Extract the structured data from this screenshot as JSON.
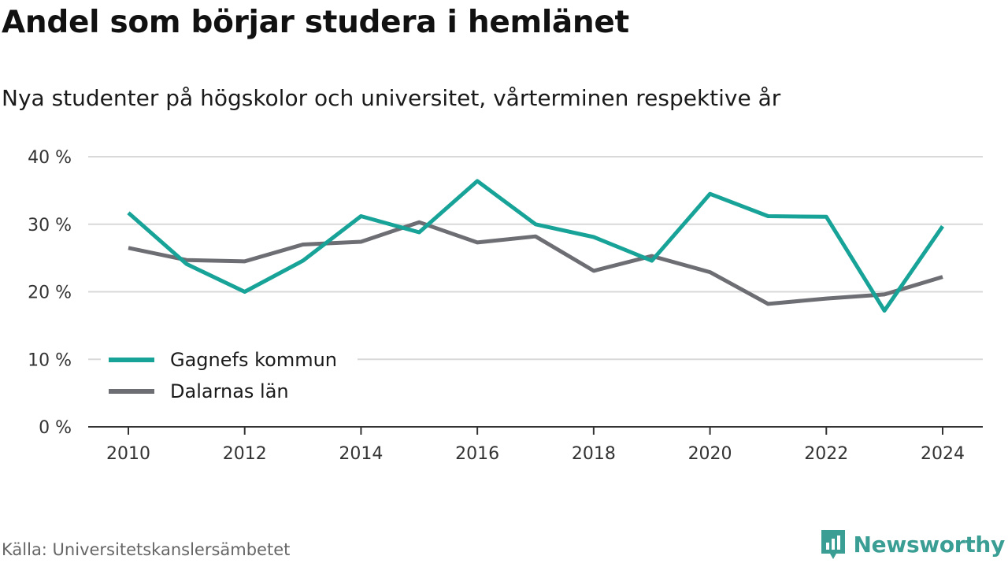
{
  "title": "Andel som börjar studera i hemlänet",
  "subtitle": "Nya studenter på högskolor och universitet, vårterminen respektive år",
  "source": "Källa: Universitetskanslersämbetet",
  "brand": {
    "name": "Newsworthy",
    "icon": "newsworthy-logo-icon",
    "color": "#3a9e94"
  },
  "chart_data": {
    "type": "line",
    "x": [
      2010,
      2011,
      2012,
      2013,
      2014,
      2015,
      2016,
      2017,
      2018,
      2019,
      2020,
      2021,
      2022,
      2023,
      2024
    ],
    "series": [
      {
        "name": "Gagnefs kommun",
        "color": "#17a398",
        "values": [
          31.7,
          24.1,
          20.0,
          24.6,
          31.2,
          28.8,
          36.4,
          30.0,
          28.1,
          24.6,
          34.5,
          31.2,
          31.1,
          17.2,
          29.7
        ]
      },
      {
        "name": "Dalarnas län",
        "color": "#6d6d74",
        "values": [
          26.5,
          24.7,
          24.5,
          27.0,
          27.4,
          30.3,
          27.3,
          28.2,
          23.1,
          25.3,
          22.9,
          18.2,
          19.0,
          19.6,
          22.2
        ]
      }
    ],
    "xticks": [
      2010,
      2012,
      2014,
      2016,
      2018,
      2020,
      2022,
      2024
    ],
    "yticks": [
      0,
      10,
      20,
      30,
      40
    ],
    "ytick_labels": [
      "0 %",
      "10 %",
      "20 %",
      "30 %",
      "40 %"
    ],
    "ylim": [
      0,
      40
    ],
    "xlim": [
      2010,
      2024
    ],
    "grid": true,
    "legend_position": "bottom-left"
  }
}
